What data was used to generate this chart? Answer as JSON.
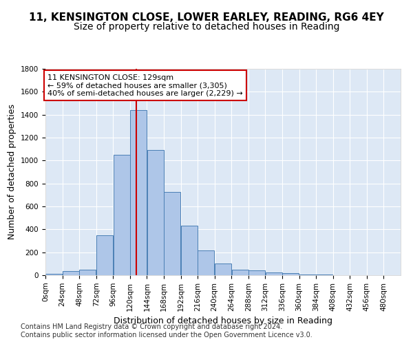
{
  "title1": "11, KENSINGTON CLOSE, LOWER EARLEY, READING, RG6 4EY",
  "title2": "Size of property relative to detached houses in Reading",
  "xlabel": "Distribution of detached houses by size in Reading",
  "ylabel": "Number of detached properties",
  "bin_labels": [
    "0sqm",
    "24sqm",
    "48sqm",
    "72sqm",
    "96sqm",
    "120sqm",
    "144sqm",
    "168sqm",
    "192sqm",
    "216sqm",
    "240sqm",
    "264sqm",
    "288sqm",
    "312sqm",
    "336sqm",
    "360sqm",
    "384sqm",
    "408sqm",
    "432sqm",
    "456sqm",
    "480sqm"
  ],
  "bar_values": [
    10,
    35,
    50,
    350,
    1050,
    1440,
    1090,
    725,
    430,
    215,
    105,
    50,
    40,
    25,
    20,
    8,
    5,
    3,
    2,
    1,
    1
  ],
  "bar_color": "#aec6e8",
  "bar_edge_color": "#4a7fb5",
  "vline_x": 129,
  "vline_color": "#cc0000",
  "annotation_text": "11 KENSINGTON CLOSE: 129sqm\n← 59% of detached houses are smaller (3,305)\n40% of semi-detached houses are larger (2,229) →",
  "annotation_box_color": "#ffffff",
  "annotation_box_edge": "#cc0000",
  "ylim": [
    0,
    1800
  ],
  "bin_size": 24,
  "footnote1": "Contains HM Land Registry data © Crown copyright and database right 2024.",
  "footnote2": "Contains public sector information licensed under the Open Government Licence v3.0.",
  "bg_color": "#ffffff",
  "plot_bg_color": "#dde8f5",
  "grid_color": "#ffffff",
  "title1_fontsize": 11,
  "title2_fontsize": 10,
  "axis_label_fontsize": 9,
  "tick_fontsize": 7.5,
  "footnote_fontsize": 7,
  "annotation_fontsize": 8
}
